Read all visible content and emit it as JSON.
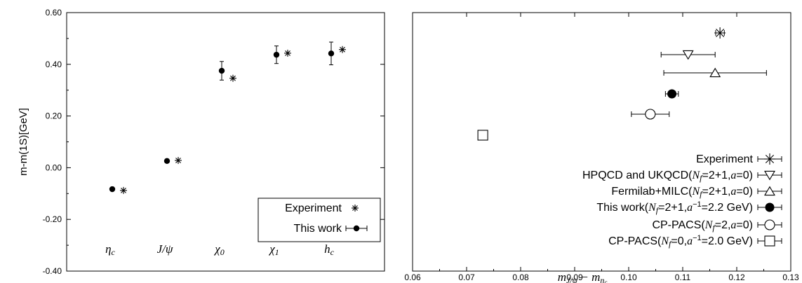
{
  "chart_data": [
    {
      "type": "scatter",
      "title": "",
      "ylabel": "m-m(1S)[GeV]",
      "xlabel": "",
      "ylim": [
        -0.4,
        0.6
      ],
      "yticks": [
        "0.60",
        "0.40",
        "0.20",
        "0.00",
        "-0.20",
        "-0.40"
      ],
      "categories": [
        "ηc",
        "J/ψ",
        "χ0",
        "χ1",
        "hc"
      ],
      "categories_display": [
        {
          "main": "η",
          "sub": "c"
        },
        {
          "main": "J/ψ",
          "sub": ""
        },
        {
          "main": "χ",
          "sub": "0"
        },
        {
          "main": "χ",
          "sub": "1"
        },
        {
          "main": "h",
          "sub": "c"
        }
      ],
      "series": [
        {
          "name": "Experiment",
          "marker": "asterisk",
          "values": [
            -0.088,
            0.028,
            0.346,
            0.443,
            0.457
          ]
        },
        {
          "name": "This work",
          "marker": "filled-circle",
          "values": [
            -0.083,
            0.026,
            0.375,
            0.437,
            0.442
          ],
          "errors": [
            0.004,
            0.005,
            0.036,
            0.034,
            0.044
          ]
        }
      ],
      "legend": {
        "position": "bottom-right",
        "entries": [
          "Experiment",
          "This work"
        ]
      }
    },
    {
      "type": "scatter",
      "title": "",
      "xlabel": "mJ/ψ − mηc",
      "xlabel_parts": {
        "m1": "m",
        "s1": "J/ψ",
        "op": " − ",
        "m2": "m",
        "s2": "η",
        "s2sub": "c"
      },
      "xlim": [
        0.06,
        0.13
      ],
      "xticks": [
        "0.06",
        "0.07",
        "0.08",
        "0.09",
        "0.10",
        "0.11",
        "0.12",
        "0.13"
      ],
      "ylabel": "",
      "series": [
        {
          "name": "Experiment",
          "marker": "asterisk",
          "x": 0.1169,
          "xerr": 0.0008
        },
        {
          "name": "HPQCD and UKQCD(Nf=2+1,a=0)",
          "marker": "open-down-triangle",
          "x": 0.111,
          "xerr": 0.005
        },
        {
          "name": "Fermilab+MILC(Nf=2+1,a=0)",
          "marker": "open-up-triangle",
          "x": 0.116,
          "xerr": 0.0095
        },
        {
          "name": "This work(Nf=2+1,a−1=2.2 GeV)",
          "marker": "filled-circle",
          "x": 0.108,
          "xerr": 0.0012
        },
        {
          "name": "CP-PACS(Nf=2,a=0)",
          "marker": "open-circle",
          "x": 0.104,
          "xerr": 0.0035
        },
        {
          "name": "CP-PACS(Nf=0,a−1=2.0 GeV)",
          "marker": "open-square",
          "x": 0.073,
          "xerr": 0
        }
      ],
      "legend": {
        "position": "bottom-right",
        "entries": [
          {
            "parts": [
              "Experiment"
            ]
          },
          {
            "parts": [
              "HPQCD and UKQCD(",
              "N",
              "f",
              "=2+1,",
              "a",
              "=0)"
            ]
          },
          {
            "parts": [
              "Fermilab+MILC(",
              "N",
              "f",
              "=2+1,",
              "a",
              "=0)"
            ]
          },
          {
            "parts": [
              "This work(",
              "N",
              "f",
              "=2+1,",
              "a",
              "−1",
              "=2.2 GeV)"
            ]
          },
          {
            "parts": [
              "CP-PACS(",
              "N",
              "f",
              "=2,",
              "a",
              "=0)"
            ]
          },
          {
            "parts": [
              "CP-PACS(",
              "N",
              "f",
              "=0,",
              "a",
              "−1",
              "=2.0 GeV)"
            ]
          }
        ]
      }
    }
  ]
}
